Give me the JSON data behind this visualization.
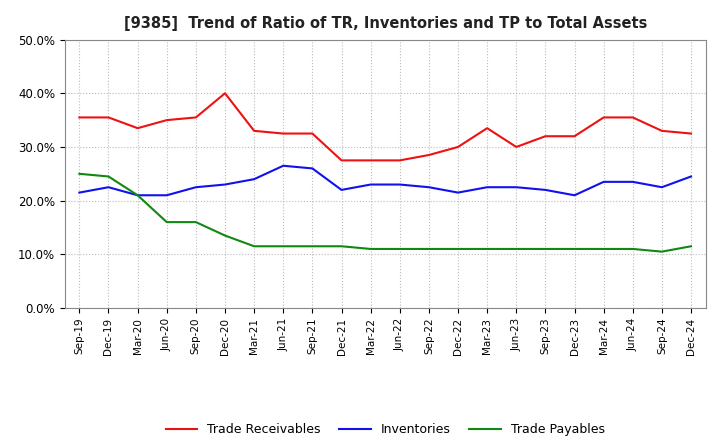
{
  "title": "[9385]  Trend of Ratio of TR, Inventories and TP to Total Assets",
  "x_labels": [
    "Sep-19",
    "Dec-19",
    "Mar-20",
    "Jun-20",
    "Sep-20",
    "Dec-20",
    "Mar-21",
    "Jun-21",
    "Sep-21",
    "Dec-21",
    "Mar-22",
    "Jun-22",
    "Sep-22",
    "Dec-22",
    "Mar-23",
    "Jun-23",
    "Sep-23",
    "Dec-23",
    "Mar-24",
    "Jun-24",
    "Sep-24",
    "Dec-24"
  ],
  "trade_receivables": [
    35.5,
    35.5,
    33.5,
    35.0,
    35.5,
    40.0,
    33.0,
    32.5,
    32.5,
    27.5,
    27.5,
    27.5,
    28.5,
    30.0,
    33.5,
    30.0,
    32.0,
    32.0,
    35.5,
    35.5,
    33.0,
    32.5
  ],
  "inventories": [
    21.5,
    22.5,
    21.0,
    21.0,
    22.5,
    23.0,
    24.0,
    26.5,
    26.0,
    22.0,
    23.0,
    23.0,
    22.5,
    21.5,
    22.5,
    22.5,
    22.0,
    21.0,
    23.5,
    23.5,
    22.5,
    24.5
  ],
  "trade_payables": [
    25.0,
    24.5,
    21.0,
    16.0,
    16.0,
    13.5,
    11.5,
    11.5,
    11.5,
    11.5,
    11.0,
    11.0,
    11.0,
    11.0,
    11.0,
    11.0,
    11.0,
    11.0,
    11.0,
    11.0,
    10.5,
    11.5
  ],
  "ylim": [
    0,
    50
  ],
  "yticks": [
    0,
    10,
    20,
    30,
    40,
    50
  ],
  "colors": {
    "trade_receivables": "#EE1111",
    "inventories": "#1111EE",
    "trade_payables": "#118811"
  },
  "legend_labels": [
    "Trade Receivables",
    "Inventories",
    "Trade Payables"
  ],
  "background_color": "#FFFFFF",
  "grid_color": "#BBBBBB"
}
